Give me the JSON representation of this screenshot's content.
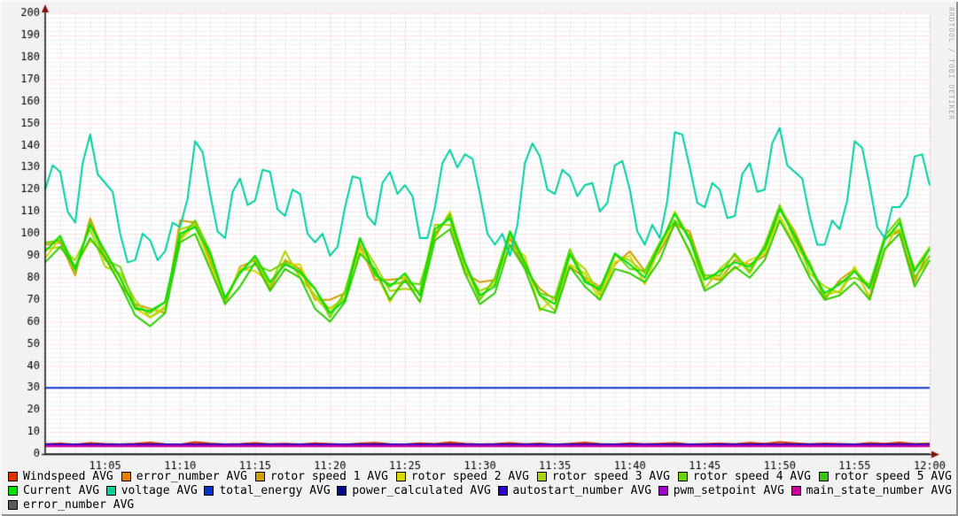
{
  "watermark": "RRDTOOL / TOBI OETIKER",
  "colors": {
    "outer_background": "#f2f2f2",
    "plot_background": "#ffffff",
    "axis": "#1c1c1c",
    "axis_arrow": "#7f1010",
    "grid_major": "rgba(255,60,60,0.42)",
    "grid_minor": "rgba(110,110,110,0.32)",
    "tick_label": "#000000",
    "watermark_text": "#a9a9a9"
  },
  "chart_data": {
    "type": "line",
    "title": "",
    "grid": "on",
    "legend_position": "bottom",
    "x_axis": {
      "kind": "time",
      "start_min": 61,
      "end_min": 120,
      "minor_step_min": 1,
      "major_step_min": 5,
      "labels": [
        {
          "t": 65,
          "text": "11:05"
        },
        {
          "t": 70,
          "text": "11:10"
        },
        {
          "t": 75,
          "text": "11:15"
        },
        {
          "t": 80,
          "text": "11:20"
        },
        {
          "t": 85,
          "text": "11:25"
        },
        {
          "t": 90,
          "text": "11:30"
        },
        {
          "t": 95,
          "text": "11:35"
        },
        {
          "t": 100,
          "text": "11:40"
        },
        {
          "t": 105,
          "text": "11:45"
        },
        {
          "t": 110,
          "text": "11:50"
        },
        {
          "t": 115,
          "text": "11:55"
        },
        {
          "t": 120,
          "text": "12:00"
        }
      ]
    },
    "y_axis": {
      "min": 0,
      "max": 200,
      "major_step": 10,
      "minor_step": 2,
      "ticks": [
        0,
        10,
        20,
        30,
        40,
        50,
        60,
        70,
        80,
        90,
        100,
        110,
        120,
        130,
        140,
        150,
        160,
        170,
        180,
        190,
        200
      ]
    },
    "series": [
      {
        "id": "windspeed",
        "label": "Windspeed AVG",
        "color": "#dd3300",
        "x_step": 1,
        "values": [
          4.5,
          4.8,
          4.3,
          5.0,
          4.6,
          4.4,
          4.7,
          5.2,
          4.5,
          4.3,
          5.4,
          4.8,
          4.4,
          4.6,
          5.0,
          4.5,
          4.7,
          4.4,
          4.9,
          4.6,
          4.3,
          4.8,
          5.1,
          4.5,
          4.4,
          4.9,
          4.6,
          5.3,
          4.7,
          4.4,
          4.6,
          5.0,
          4.5,
          4.8,
          4.3,
          4.7,
          5.2,
          4.6,
          4.4,
          4.9,
          4.5,
          4.7,
          5.0,
          4.4,
          4.6,
          4.8,
          4.5,
          5.1,
          4.7,
          5.4,
          4.9,
          4.5,
          4.8,
          4.6,
          4.4,
          5.0,
          4.7,
          5.2,
          4.6,
          4.8
        ]
      },
      {
        "id": "error_number",
        "label": "error_number AVG",
        "color": "#e08000",
        "const": 0
      },
      {
        "id": "rotor1",
        "label": "rotor speed 1 AVG",
        "color": "#cfa000",
        "x_step": 1,
        "values": [
          95,
          96,
          81,
          107,
          90,
          77,
          68,
          66,
          64,
          106,
          105,
          88,
          68,
          85,
          88,
          75,
          88,
          84,
          70,
          70,
          73,
          95,
          79,
          79,
          80,
          69,
          100,
          108,
          82,
          78,
          79,
          98,
          84,
          75,
          70,
          85,
          80,
          76,
          86,
          92,
          83,
          92,
          104,
          101,
          80,
          79,
          88,
          86,
          90,
          112,
          101,
          86,
          70,
          79,
          84,
          71,
          98,
          101,
          78,
          94
        ]
      },
      {
        "id": "rotor2",
        "label": "rotor speed 2 AVG",
        "color": "#d8d800",
        "x_step": 1,
        "values": [
          89,
          98,
          85,
          97,
          91,
          80,
          66,
          62,
          67,
          97,
          104,
          86,
          70,
          84,
          83,
          78,
          86,
          86,
          71,
          64,
          73,
          93,
          83,
          69,
          81,
          72,
          98,
          110,
          85,
          70,
          79,
          94,
          90,
          65,
          71,
          86,
          82,
          70,
          87,
          90,
          77,
          94,
          106,
          91,
          80,
          80,
          84,
          88,
          91,
          108,
          95,
          86,
          72,
          74,
          85,
          70,
          92,
          106,
          80,
          88
        ]
      },
      {
        "id": "rotor3",
        "label": "rotor speed 3 AVG",
        "color": "#a8d700",
        "x_step": 1,
        "values": [
          93,
          94,
          88,
          102,
          85,
          82,
          70,
          62,
          66,
          102,
          104,
          90,
          69,
          83,
          89,
          76,
          92,
          80,
          72,
          66,
          71,
          97,
          86,
          74,
          75,
          74,
          104,
          104,
          84,
          74,
          77,
          100,
          86,
          72,
          65,
          90,
          84,
          72,
          90,
          88,
          82,
          94,
          110,
          98,
          75,
          84,
          90,
          82,
          94,
          112,
          100,
          82,
          76,
          73,
          84,
          76,
          98,
          102,
          84,
          94
        ]
      },
      {
        "id": "rotor4",
        "label": "rotor speed 4 AVG",
        "color": "#6bd300",
        "x_step": 1,
        "values": [
          96,
          97,
          83,
          105,
          88,
          85,
          67,
          64,
          69,
          98,
          106,
          92,
          70,
          83,
          86,
          83,
          87,
          82,
          75,
          62,
          74,
          98,
          81,
          77,
          78,
          77,
          99,
          109,
          87,
          70,
          80,
          101,
          85,
          73,
          71,
          93,
          79,
          74,
          91,
          84,
          83,
          96,
          106,
          99,
          81,
          81,
          91,
          83,
          95,
          113,
          97,
          87,
          71,
          78,
          80,
          77,
          99,
          107,
          80,
          90
        ]
      },
      {
        "id": "rotor5",
        "label": "rotor speed 5 AVG",
        "color": "#2ecc00",
        "x_step": 1,
        "values": [
          87,
          94,
          85,
          98,
          89,
          77,
          63,
          58,
          64,
          96,
          100,
          84,
          68,
          76,
          87,
          74,
          84,
          80,
          66,
          60,
          69,
          91,
          84,
          70,
          79,
          69,
          97,
          102,
          82,
          68,
          73,
          95,
          84,
          66,
          64,
          85,
          76,
          70,
          84,
          82,
          78,
          88,
          105,
          92,
          74,
          78,
          85,
          80,
          88,
          106,
          94,
          80,
          70,
          72,
          78,
          70,
          93,
          100,
          76,
          88
        ]
      },
      {
        "id": "current",
        "label": "Current AVG",
        "color": "#00e000",
        "x_step": 1,
        "values": [
          92,
          99,
          84,
          104,
          92,
          80,
          66,
          65,
          69,
          100,
          103,
          91,
          71,
          82,
          90,
          78,
          86,
          83,
          75,
          64,
          70,
          98,
          82,
          76,
          82,
          72,
          102,
          107,
          87,
          72,
          76,
          101,
          87,
          72,
          68,
          91,
          78,
          75,
          91,
          86,
          80,
          95,
          109,
          97,
          79,
          83,
          87,
          85,
          93,
          111,
          99,
          85,
          73,
          77,
          83,
          75,
          97,
          105,
          83,
          93
        ]
      },
      {
        "id": "voltage",
        "label": "voltage AVG",
        "color": "#00d0a0",
        "x_step": 0.5,
        "values": [
          120,
          131,
          128,
          110,
          105,
          132,
          145,
          127,
          123,
          119,
          100,
          87,
          88,
          100,
          97,
          88,
          92,
          105,
          103,
          116,
          142,
          137,
          118,
          101,
          98,
          119,
          125,
          113,
          115,
          129,
          128,
          111,
          108,
          120,
          118,
          100,
          96,
          100,
          90,
          94,
          112,
          126,
          125,
          108,
          104,
          123,
          128,
          118,
          122,
          117,
          98,
          98,
          112,
          132,
          138,
          130,
          136,
          134,
          118,
          100,
          95,
          100,
          90,
          104,
          132,
          141,
          135,
          120,
          118,
          129,
          126,
          117,
          122,
          123,
          110,
          114,
          131,
          133,
          120,
          101,
          95,
          104,
          98,
          115,
          146,
          145,
          130,
          114,
          112,
          123,
          120,
          107,
          108,
          127,
          132,
          119,
          120,
          141,
          148,
          131,
          128,
          125,
          108,
          95,
          95,
          106,
          102,
          115,
          142,
          139,
          122,
          103,
          98,
          112,
          112,
          117,
          135,
          136,
          122
        ]
      },
      {
        "id": "total_energy",
        "label": "total_energy AVG",
        "color": "#0633cc",
        "const": 30
      },
      {
        "id": "power_calculated",
        "label": "power_calculated AVG",
        "color": "#000899",
        "const": 4.4
      },
      {
        "id": "autostart_number",
        "label": "autostart_number AVG",
        "color": "#2e00cc",
        "const": 4.2
      },
      {
        "id": "pwm_setpoint",
        "label": "pwm_setpoint AVG",
        "color": "#a000cc",
        "const": 3.8
      },
      {
        "id": "main_state_number",
        "label": "main_state_number AVG",
        "color": "#cc0099",
        "const": 3.5
      },
      {
        "id": "error_number_2",
        "label": "error_number AVG",
        "color": "#595959",
        "const": 0
      }
    ],
    "legend_rows": [
      [
        "windspeed",
        "error_number",
        "rotor1",
        "rotor2",
        "rotor3",
        "rotor4",
        "rotor5"
      ],
      [
        "current",
        "voltage",
        "total_energy",
        "power_calculated",
        "autostart_number",
        "pwm_setpoint",
        "main_state_number"
      ],
      [
        "error_number_2"
      ]
    ]
  }
}
